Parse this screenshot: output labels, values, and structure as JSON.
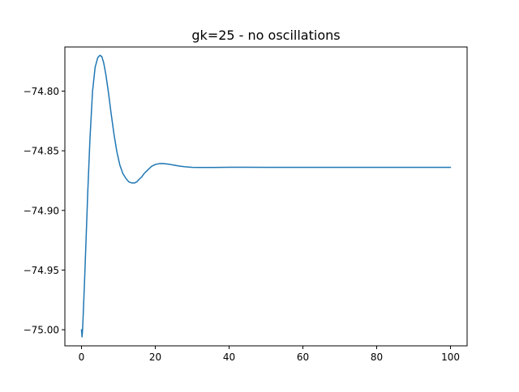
{
  "chart_data": {
    "type": "line",
    "title": "gk=25 - no oscillations",
    "xlabel": "",
    "ylabel": "",
    "xlim": [
      -4.5,
      104.5
    ],
    "ylim": [
      -75.0135,
      -74.763
    ],
    "xticks": [
      0,
      20,
      40,
      60,
      80,
      100
    ],
    "xtick_labels": [
      "0",
      "20",
      "40",
      "60",
      "80",
      "100"
    ],
    "yticks": [
      -75.0,
      -74.95,
      -74.9,
      -74.85,
      -74.8
    ],
    "ytick_labels": [
      "−75.00",
      "−74.95",
      "−74.90",
      "−74.85",
      "−74.80"
    ],
    "grid": false,
    "legend": "none",
    "series": [
      {
        "color": "#1f77b4",
        "x": [
          0,
          0.15,
          0.3,
          0.5,
          0.8,
          1.2,
          1.7,
          2.3,
          3.0,
          3.7,
          4.4,
          5.0,
          5.5,
          6.0,
          6.6,
          7.3,
          8.0,
          8.8,
          9.6,
          10.4,
          11.2,
          12.0,
          12.8,
          13.6,
          14.4,
          15.0,
          15.6,
          16.3,
          17.0,
          18.0,
          19.0,
          20.0,
          21.0,
          22.0,
          23.0,
          24.0,
          25.0,
          26.5,
          28.0,
          30.0,
          32.0,
          34.0,
          36.0,
          40.0,
          45.0,
          50.0,
          60.0,
          70.0,
          80.0,
          90.0,
          100.0
        ],
        "y": [
          -75.0,
          -75.006,
          -75.0,
          -74.985,
          -74.962,
          -74.928,
          -74.885,
          -74.84,
          -74.8,
          -74.78,
          -74.772,
          -74.77,
          -74.771,
          -74.776,
          -74.786,
          -74.801,
          -74.818,
          -74.836,
          -74.851,
          -74.862,
          -74.869,
          -74.873,
          -74.876,
          -74.877,
          -74.877,
          -74.876,
          -74.874,
          -74.872,
          -74.869,
          -74.866,
          -74.863,
          -74.8615,
          -74.8608,
          -74.8607,
          -74.861,
          -74.8614,
          -74.862,
          -74.8628,
          -74.8634,
          -74.8639,
          -74.864,
          -74.864,
          -74.864,
          -74.8638,
          -74.8638,
          -74.8639,
          -74.8639,
          -74.8639,
          -74.8639,
          -74.8639,
          -74.8639
        ]
      }
    ]
  }
}
